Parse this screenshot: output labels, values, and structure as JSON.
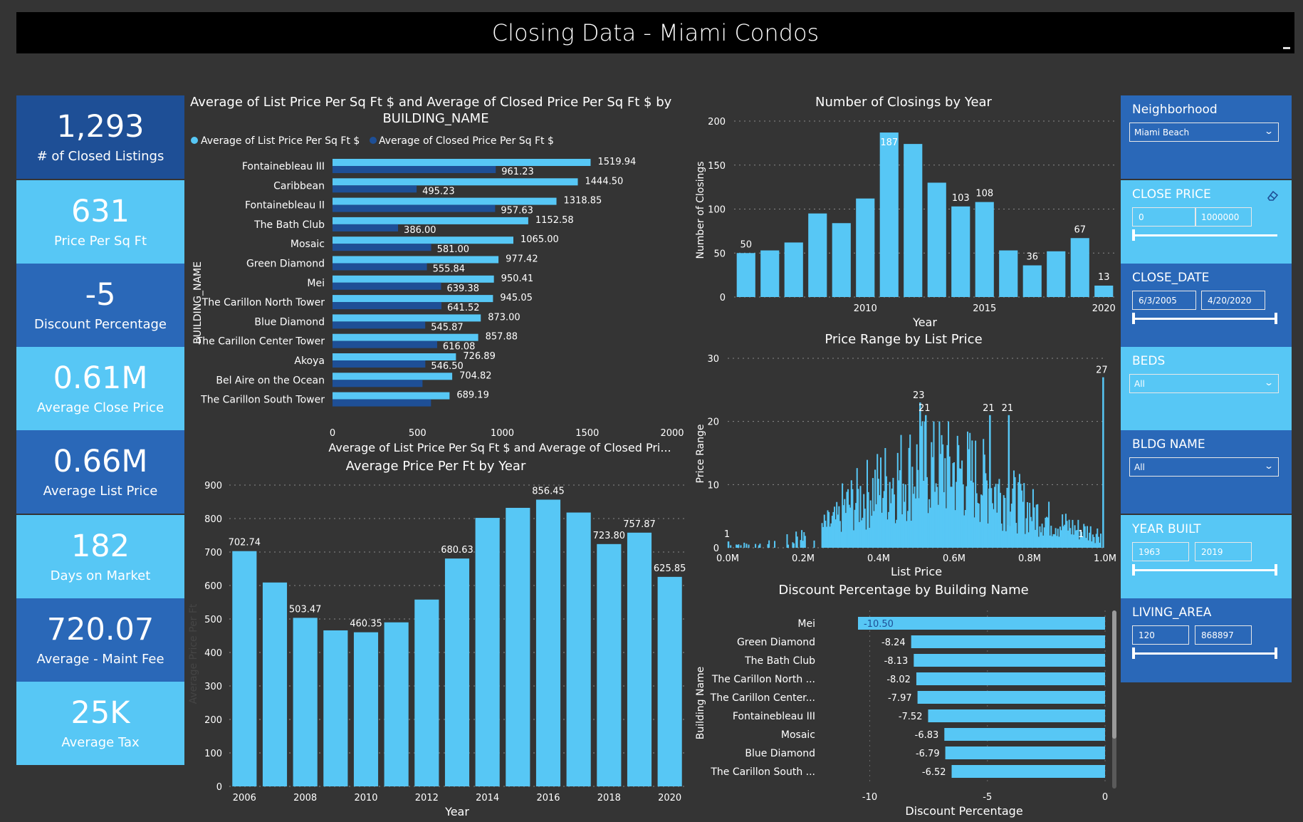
{
  "page": {
    "title": "Closing Data - Miami Condos"
  },
  "colors": {
    "bg": "#343434",
    "light": "#57C7F5",
    "dark": "#1E4F96",
    "mid": "#2A68B8",
    "text": "#FFFFFF",
    "subtext": "#E6E6E6"
  },
  "kpis": [
    {
      "value": "1,293",
      "label": "# of Closed Listings",
      "color": "#1E4F96"
    },
    {
      "value": "631",
      "label": "Price Per Sq Ft",
      "color": "#57C7F5"
    },
    {
      "value": "-5",
      "label": "Discount Percentage",
      "color": "#2A68B8"
    },
    {
      "value": "0.61M",
      "label": "Average Close Price",
      "color": "#57C7F5"
    },
    {
      "value": "0.66M",
      "label": "Average List Price",
      "color": "#2A68B8"
    },
    {
      "value": "182",
      "label": "Days on Market",
      "color": "#57C7F5"
    },
    {
      "value": "720.07",
      "label": "Average - Maint Fee",
      "color": "#2A68B8"
    },
    {
      "value": "25K",
      "label": "Average Tax",
      "color": "#57C7F5"
    }
  ],
  "slicers": {
    "neighborhood": {
      "label": "Neighborhood",
      "selected": "Miami Beach"
    },
    "close_price": {
      "label": "CLOSE PRICE",
      "min": "0",
      "max": "1000000",
      "eraser_icon": "eraser-icon"
    },
    "close_date": {
      "label": "CLOSE_DATE",
      "min": "6/3/2005",
      "max": "4/20/2020"
    },
    "beds": {
      "label": "BEDS",
      "selected": "All"
    },
    "bldg_name": {
      "label": "BLDG NAME",
      "selected": "All"
    },
    "year_built": {
      "label": "YEAR BUILT",
      "min": "1963",
      "max": "2019"
    },
    "living_area": {
      "label": "LIVING_AREA",
      "min": "120",
      "max": "868897"
    }
  },
  "chart_data": [
    {
      "id": "building",
      "type": "bar",
      "orientation": "horizontal",
      "title_line1": "Average of List Price Per Sq Ft $ and Average of Closed Price Per Sq Ft $ by",
      "title_line2": "BUILDING_NAME",
      "xlabel": "Average of List Price Per Sq Ft $ and Average of Closed Pri...",
      "ylabel": "BUILDING_NAME",
      "xlim": [
        0,
        2000
      ],
      "xticks": [
        "0",
        "500",
        "1000",
        "1500",
        "2000"
      ],
      "legend_position": "top-left",
      "categories": [
        "Fontainebleau III",
        "Caribbean",
        "Fontainebleau II",
        "The Bath Club",
        "Mosaic",
        "Green Diamond",
        "Mei",
        "The Carillon North Tower",
        "Blue Diamond",
        "The Carillon Center Tower",
        "Akoya",
        "Bel Aire on the Ocean",
        "The Carillon South Tower"
      ],
      "series": [
        {
          "name": "Average of List Price Per Sq Ft $",
          "color": "#57C7F5",
          "values": [
            1519.94,
            1444.5,
            1318.85,
            1152.58,
            1065.0,
            977.42,
            950.41,
            945.05,
            873.0,
            857.88,
            726.89,
            704.82,
            689.19
          ],
          "labels": [
            "1519.94",
            "1444.50",
            "1318.85",
            "1152.58",
            "1065.00",
            "977.42",
            "950.41",
            "945.05",
            "873.00",
            "857.88",
            "726.89",
            "704.82",
            "689.19"
          ]
        },
        {
          "name": "Average of Closed Price Per Sq Ft $",
          "color": "#1E4F96",
          "values": [
            961.23,
            495.23,
            957.63,
            386.0,
            581.0,
            555.84,
            639.38,
            641.52,
            545.87,
            616.08,
            546.5,
            530,
            580
          ],
          "labels": [
            "961.23",
            "495.23",
            "957.63",
            "386.00",
            "581.00",
            "555.84",
            "639.38",
            "641.52",
            "545.87",
            "616.08",
            "546.50",
            "",
            ""
          ]
        }
      ]
    },
    {
      "id": "closings",
      "type": "bar",
      "title": "Number of Closings by Year",
      "xlabel": "Year",
      "ylabel": "Number of Closings",
      "ylim": [
        0,
        200
      ],
      "yticks": [
        "0",
        "50",
        "100",
        "150",
        "200"
      ],
      "grid": true,
      "categories": [
        2005,
        2006,
        2007,
        2008,
        2009,
        2010,
        2011,
        2012,
        2013,
        2014,
        2015,
        2016,
        2017,
        2018,
        2019,
        2020
      ],
      "xticks": [
        "2010",
        "2015",
        "2020"
      ],
      "values": [
        50,
        53,
        62,
        95,
        84,
        112,
        187,
        174,
        130,
        103,
        108,
        53,
        36,
        52,
        67,
        13
      ],
      "labels": [
        "50",
        "",
        "",
        "",
        "",
        "",
        "187",
        "",
        "",
        "103",
        "108",
        "",
        "36",
        "",
        "67",
        "13"
      ]
    },
    {
      "id": "price_range",
      "type": "bar",
      "title": "Price Range by List Price",
      "xlabel": "List Price",
      "ylabel": "Price Range",
      "xlim": [
        0,
        1000000
      ],
      "ylim": [
        0,
        30
      ],
      "xticks": [
        "0.0M",
        "0.2M",
        "0.4M",
        "0.6M",
        "0.8M",
        "1.0M"
      ],
      "yticks": [
        "0",
        "10",
        "20",
        "30"
      ],
      "grid": true,
      "annotations": [
        {
          "x": 2000,
          "y": 1,
          "label": "1"
        },
        {
          "x": 510000,
          "y": 23,
          "label": "23"
        },
        {
          "x": 525000,
          "y": 21,
          "label": "21"
        },
        {
          "x": 695000,
          "y": 21,
          "label": "21"
        },
        {
          "x": 745000,
          "y": 21,
          "label": "21"
        },
        {
          "x": 940000,
          "y": 1,
          "label": "1"
        },
        {
          "x": 995000,
          "y": 27,
          "label": "27"
        }
      ]
    },
    {
      "id": "price_year",
      "type": "bar",
      "title": "Average Price Per Ft by Year",
      "xlabel": "Year",
      "ylabel": "Average Price Per Ft",
      "ylim": [
        0,
        900
      ],
      "yticks": [
        "0",
        "100",
        "200",
        "300",
        "400",
        "500",
        "600",
        "700",
        "800",
        "900"
      ],
      "grid": true,
      "categories": [
        2006,
        2007,
        2008,
        2009,
        2010,
        2011,
        2012,
        2013,
        2014,
        2015,
        2016,
        2017,
        2018,
        2019,
        2020
      ],
      "xticks": [
        "2006",
        "2008",
        "2010",
        "2012",
        "2014",
        "2016",
        "2018",
        "2020"
      ],
      "values": [
        702.74,
        609,
        503.47,
        466,
        460.35,
        490,
        558,
        680.63,
        802,
        832,
        856.45,
        818,
        723.8,
        757.87,
        625.85
      ],
      "labels": [
        "702.74",
        "",
        "503.47",
        "",
        "460.35",
        "",
        "",
        "680.63",
        "",
        "",
        "856.45",
        "",
        "723.80",
        "757.87",
        "625.85"
      ]
    },
    {
      "id": "discount",
      "type": "bar",
      "orientation": "horizontal",
      "title": "Discount Percentage by Building Name",
      "xlabel": "Discount Percentage",
      "ylabel": "Building Name",
      "xlim": [
        -10.5,
        0
      ],
      "xticks": [
        "-10",
        "-5",
        "0"
      ],
      "categories": [
        "Mei",
        "Green Diamond",
        "The Bath Club",
        "The Carillon North ...",
        "The Carillon Center...",
        "Fontainebleau III",
        "Mosaic",
        "Blue Diamond",
        "The Carillon South ..."
      ],
      "values": [
        -10.5,
        -8.24,
        -8.13,
        -8.02,
        -7.97,
        -7.52,
        -6.83,
        -6.79,
        -6.52
      ],
      "labels": [
        "-10.50",
        "-8.24",
        "-8.13",
        "-8.02",
        "-7.97",
        "-7.52",
        "-6.83",
        "-6.79",
        "-6.52"
      ]
    }
  ]
}
